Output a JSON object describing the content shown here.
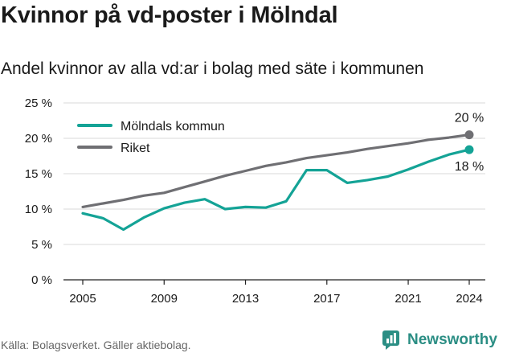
{
  "header": {
    "title": "Kvinnor på vd-poster i Mölndal",
    "subtitle": "Andel kvinnor av alla vd:ar i bolag med säte i kommunen"
  },
  "footer": {
    "source": "Källa: Bolagsverket. Gäller aktiebolag.",
    "brand": "Newsworthy"
  },
  "colors": {
    "molndal": "#14a396",
    "riket": "#6f6f73",
    "grid": "#d9d9d9",
    "axis": "#222222",
    "text": "#1a1a1a"
  },
  "chart_data": {
    "type": "line",
    "y_tick_labels": [
      "0 %",
      "5 %",
      "10 %",
      "15 %",
      "20 %",
      "25 %"
    ],
    "x_tick_labels": [
      "2005",
      "2009",
      "2013",
      "2017",
      "2021",
      "2024"
    ],
    "legend_placement": "top-left",
    "x": [
      2005,
      2006,
      2007,
      2008,
      2009,
      2010,
      2011,
      2012,
      2013,
      2014,
      2015,
      2016,
      2017,
      2018,
      2019,
      2020,
      2021,
      2022,
      2023,
      2024
    ],
    "series": [
      {
        "name": "Mölndals kommun",
        "color_key": "molndal",
        "end_label": "18 %",
        "values": [
          9.4,
          8.7,
          7.1,
          8.8,
          10.1,
          10.9,
          11.4,
          10.0,
          10.3,
          10.2,
          11.1,
          15.5,
          15.5,
          13.7,
          14.1,
          14.6,
          15.6,
          16.7,
          17.7,
          18.4
        ]
      },
      {
        "name": "Riket",
        "color_key": "riket",
        "end_label": "20 %",
        "values": [
          10.3,
          10.8,
          11.3,
          11.9,
          12.3,
          13.1,
          13.9,
          14.7,
          15.4,
          16.1,
          16.6,
          17.2,
          17.6,
          18.0,
          18.5,
          18.9,
          19.3,
          19.8,
          20.1,
          20.5
        ]
      }
    ],
    "xlim": [
      2005,
      2024
    ],
    "ylim": [
      0,
      25
    ],
    "grid": true
  }
}
